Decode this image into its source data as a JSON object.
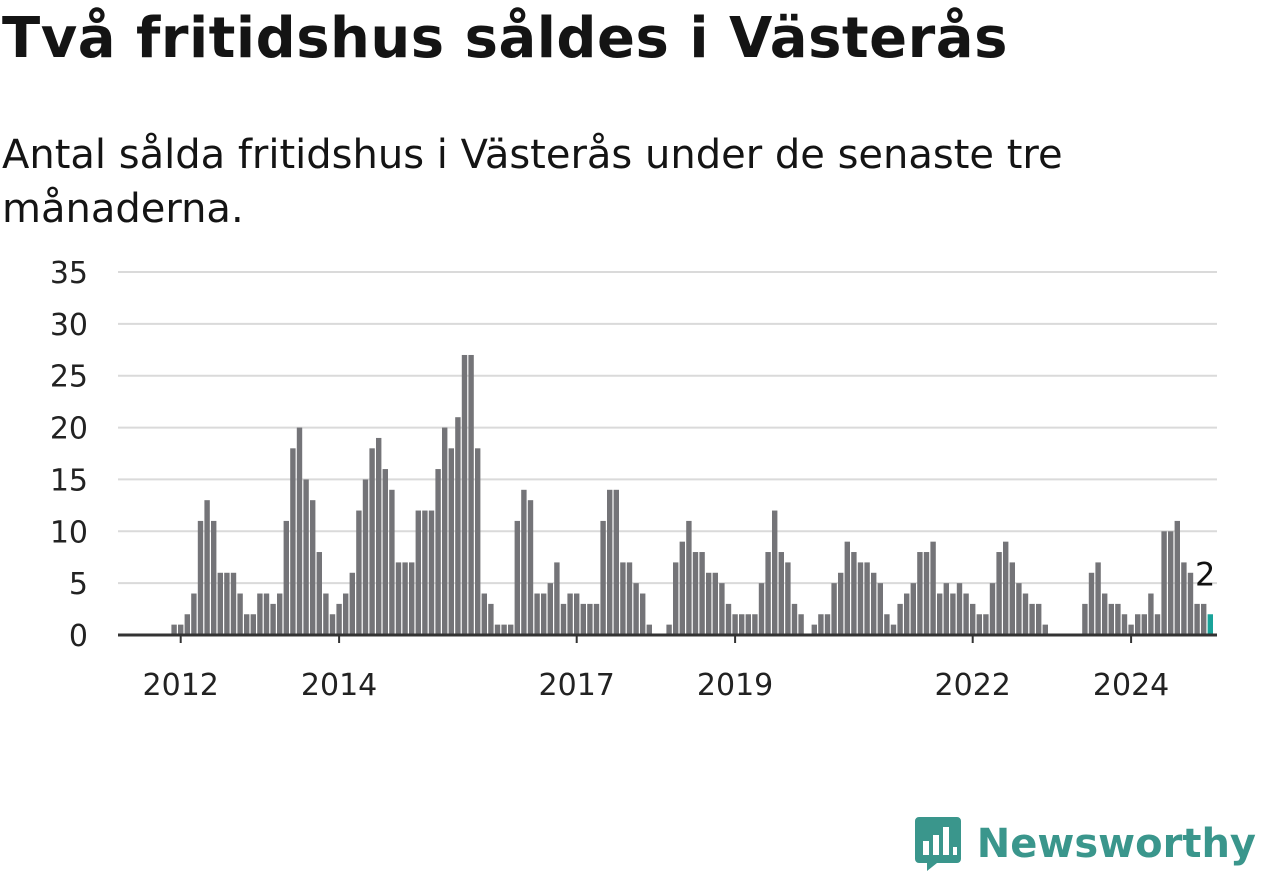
{
  "title": "Två fritidshus såldes i Västerås",
  "subtitle": "Antal sålda fritidshus i Västerås under de senaste tre månaderna.",
  "brand": {
    "name": "Newsworthy",
    "icon": "newsworthy-logo-icon",
    "color": "#3a968c"
  },
  "chart_data": {
    "type": "bar",
    "start_month": "2011-04",
    "x_tick_labels": [
      "2012",
      "2014",
      "2017",
      "2019",
      "2022",
      "2024"
    ],
    "y_ticks": [
      0,
      5,
      10,
      15,
      20,
      25,
      30,
      35
    ],
    "ylim": [
      0,
      35
    ],
    "grid": true,
    "bar_color": "#747478",
    "highlight_color": "#19a39a",
    "last_value_label": "2",
    "values": [
      0,
      0,
      0,
      0,
      0,
      0,
      0,
      0,
      1,
      1,
      2,
      4,
      11,
      13,
      11,
      6,
      6,
      6,
      4,
      2,
      2,
      4,
      4,
      3,
      4,
      11,
      18,
      20,
      15,
      13,
      8,
      4,
      2,
      3,
      4,
      6,
      12,
      15,
      18,
      19,
      16,
      14,
      7,
      7,
      7,
      12,
      12,
      12,
      16,
      20,
      18,
      21,
      27,
      27,
      18,
      4,
      3,
      1,
      1,
      1,
      11,
      14,
      13,
      4,
      4,
      5,
      7,
      3,
      4,
      4,
      3,
      3,
      3,
      11,
      14,
      14,
      7,
      7,
      5,
      4,
      1,
      0,
      0,
      1,
      7,
      9,
      11,
      8,
      8,
      6,
      6,
      5,
      3,
      2,
      2,
      2,
      2,
      5,
      8,
      12,
      8,
      7,
      3,
      2,
      0,
      1,
      2,
      2,
      5,
      6,
      9,
      8,
      7,
      7,
      6,
      5,
      2,
      1,
      3,
      4,
      5,
      8,
      8,
      9,
      4,
      5,
      4,
      5,
      4,
      3,
      2,
      2,
      5,
      8,
      9,
      7,
      5,
      4,
      3,
      3,
      1,
      0,
      0,
      0,
      0,
      0,
      3,
      6,
      7,
      4,
      3,
      3,
      2,
      1,
      2,
      2,
      4,
      2,
      10,
      10,
      11,
      7,
      6,
      3,
      3,
      2
    ]
  }
}
